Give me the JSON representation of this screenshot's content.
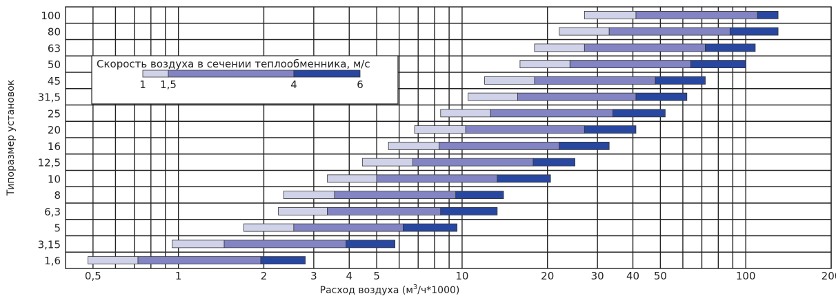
{
  "chart_data": {
    "type": "bar",
    "orientation": "horizontal-range",
    "x_scale": "log",
    "xlim": [
      0.4,
      200
    ],
    "xlabel_main": "Расход воздуха (м",
    "xlabel_sup": "3",
    "xlabel_tail": "/ч*1000)",
    "ylabel": "Типоразмер установок",
    "x_ticks": [
      {
        "value": 0.5,
        "label": "0,5"
      },
      {
        "value": 1,
        "label": "1"
      },
      {
        "value": 2,
        "label": "2"
      },
      {
        "value": 3,
        "label": "3"
      },
      {
        "value": 4,
        "label": "4"
      },
      {
        "value": 5,
        "label": "5"
      },
      {
        "value": 10,
        "label": "10"
      },
      {
        "value": 20,
        "label": "20"
      },
      {
        "value": 30,
        "label": "30"
      },
      {
        "value": 40,
        "label": "40"
      },
      {
        "value": 50,
        "label": "50"
      },
      {
        "value": 100,
        "label": "100"
      },
      {
        "value": 200,
        "label": "200"
      }
    ],
    "x_gridlines": [
      0.5,
      0.6,
      0.7,
      0.8,
      0.9,
      1,
      2,
      3,
      4,
      5,
      6,
      7,
      8,
      9,
      10,
      20,
      30,
      40,
      50,
      60,
      70,
      80,
      90,
      100,
      200
    ],
    "legend": {
      "title": "Скорость воздуха в сечении теплообменника, м/с",
      "placement": "top-left",
      "ticks": [
        {
          "value": 1,
          "label": "1"
        },
        {
          "value": 1.5,
          "label": "1,5"
        },
        {
          "value": 4,
          "label": "4"
        },
        {
          "value": 6,
          "label": "6"
        }
      ]
    },
    "colors": {
      "v1_1_5": "#cfd2e8",
      "v1_5_4": "#8284c3",
      "v4_6": "#2847a0"
    },
    "categories": [
      "100",
      "80",
      "63",
      "50",
      "45",
      "31,5",
      "25",
      "20",
      "16",
      "12,5",
      "10",
      "8",
      "6,3",
      "5",
      "3,15",
      "1,6"
    ],
    "series": [
      {
        "category": "100",
        "v1": 27,
        "v1_5": 41,
        "v4": 110,
        "v6": 130
      },
      {
        "category": "80",
        "v1": 22,
        "v1_5": 33,
        "v4": 88,
        "v6": 130
      },
      {
        "category": "63",
        "v1": 18,
        "v1_5": 27,
        "v4": 72,
        "v6": 108
      },
      {
        "category": "50",
        "v1": 16,
        "v1_5": 24,
        "v4": 64,
        "v6": 100
      },
      {
        "category": "45",
        "v1": 12,
        "v1_5": 18,
        "v4": 48,
        "v6": 72
      },
      {
        "category": "31,5",
        "v1": 10.5,
        "v1_5": 15.7,
        "v4": 41,
        "v6": 62
      },
      {
        "category": "25",
        "v1": 8.4,
        "v1_5": 12.6,
        "v4": 34,
        "v6": 52
      },
      {
        "category": "20",
        "v1": 6.8,
        "v1_5": 10.3,
        "v4": 27,
        "v6": 41
      },
      {
        "category": "16",
        "v1": 5.5,
        "v1_5": 8.3,
        "v4": 22,
        "v6": 33
      },
      {
        "category": "12,5",
        "v1": 4.45,
        "v1_5": 6.7,
        "v4": 17.8,
        "v6": 25
      },
      {
        "category": "10",
        "v1": 3.35,
        "v1_5": 5,
        "v4": 13.3,
        "v6": 20.5
      },
      {
        "category": "8",
        "v1": 2.35,
        "v1_5": 3.55,
        "v4": 9.5,
        "v6": 14
      },
      {
        "category": "6,3",
        "v1": 2.25,
        "v1_5": 3.35,
        "v4": 8.4,
        "v6": 13.3
      },
      {
        "category": "5",
        "v1": 1.7,
        "v1_5": 2.55,
        "v4": 6.2,
        "v6": 9.6
      },
      {
        "category": "3,15",
        "v1": 0.95,
        "v1_5": 1.45,
        "v4": 3.9,
        "v6": 5.8
      },
      {
        "category": "1,6",
        "v1": 0.48,
        "v1_5": 0.72,
        "v4": 1.95,
        "v6": 2.8
      }
    ]
  }
}
